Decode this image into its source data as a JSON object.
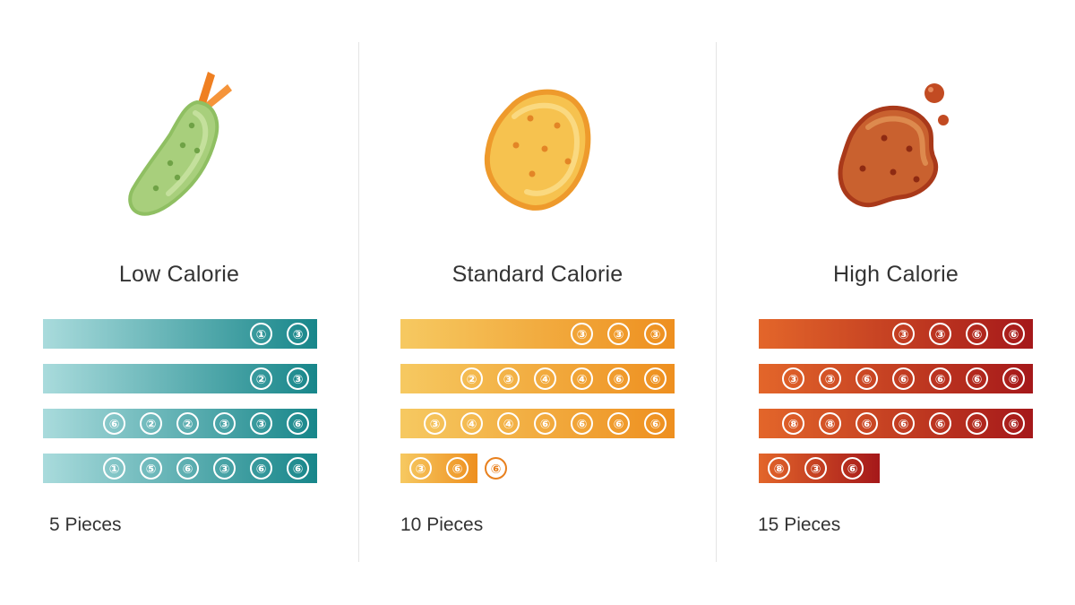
{
  "columns": [
    {
      "id": "low",
      "title": "Low Calorie",
      "pieces": "5 Pieces",
      "icon": "tempura-shrimp-icon",
      "colors": {
        "start": "#a9dbdc",
        "end": "#17868a",
        "badge_alt": "#4aa5a8"
      },
      "rows": [
        {
          "fill": 1.0,
          "badges": [
            "①",
            "③"
          ]
        },
        {
          "fill": 1.0,
          "badges": [
            "②",
            "③"
          ]
        },
        {
          "fill": 1.0,
          "badges": [
            "⑥",
            "②",
            "②",
            "③",
            "③",
            "⑥"
          ]
        },
        {
          "fill": 1.0,
          "badges": [
            "①",
            "⑤",
            "⑥",
            "③",
            "⑥",
            "⑥"
          ]
        }
      ]
    },
    {
      "id": "standard",
      "title": "Standard Calorie",
      "pieces": "10 Pieces",
      "icon": "fried-nugget-icon",
      "colors": {
        "start": "#f6c961",
        "end": "#ee8f1f",
        "badge_alt": "#e8801e"
      },
      "rows": [
        {
          "fill": 1.0,
          "badges": [
            "③",
            "③",
            "③"
          ]
        },
        {
          "fill": 1.0,
          "badges": [
            "②",
            "③",
            "④",
            "④",
            "⑥",
            "⑥"
          ]
        },
        {
          "fill": 1.0,
          "badges": [
            "③",
            "④",
            "④",
            "⑥",
            "⑥",
            "⑥",
            "⑥"
          ]
        },
        {
          "fill": 0.28,
          "badges": [
            "③",
            "⑥"
          ],
          "extra_badge": "⑥"
        }
      ]
    },
    {
      "id": "high",
      "title": "High Calorie",
      "pieces": "15 Pieces",
      "icon": "greasy-fried-piece-icon",
      "colors": {
        "start": "#e3662a",
        "end": "#a5181a",
        "badge_alt": "#c9462a"
      },
      "rows": [
        {
          "fill": 1.0,
          "badges": [
            "③",
            "③",
            "⑥",
            "⑥"
          ]
        },
        {
          "fill": 1.0,
          "badges": [
            "③",
            "③",
            "⑥",
            "⑥",
            "⑥",
            "⑥",
            "⑥"
          ]
        },
        {
          "fill": 1.0,
          "badges": [
            "⑧",
            "⑧",
            "⑥",
            "⑥",
            "⑥",
            "⑥",
            "⑥"
          ]
        },
        {
          "fill": 0.44,
          "badges": [
            "⑧",
            "③",
            "⑥"
          ]
        }
      ]
    }
  ]
}
